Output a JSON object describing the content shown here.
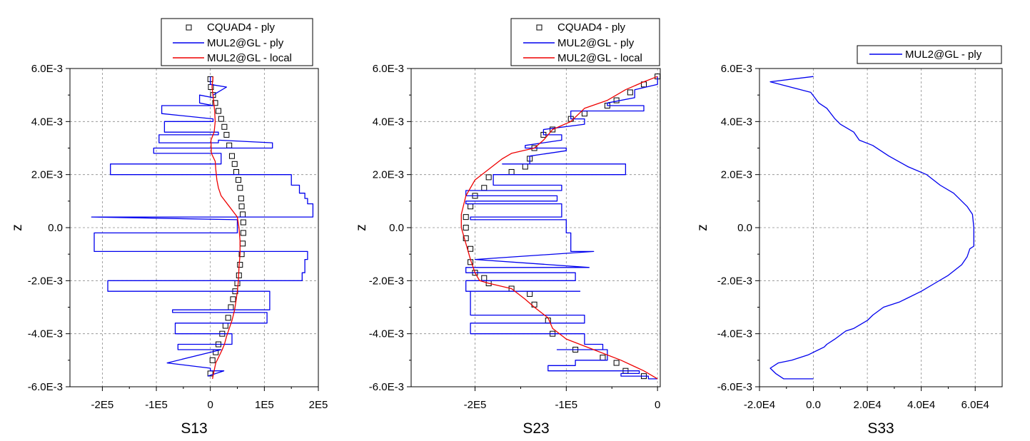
{
  "chart_data": [
    {
      "type": "line",
      "xlabel": "S13",
      "ylabel": "z",
      "xlim": [
        -260000,
        200000
      ],
      "ylim": [
        -0.006,
        0.006
      ],
      "xticks": [
        -200000,
        -100000,
        0,
        100000,
        200000
      ],
      "xtick_labels": [
        "-2E5",
        "-1E5",
        "0",
        "1E5",
        "2E5"
      ],
      "yticks": [
        -0.006,
        -0.004,
        -0.002,
        0,
        0.002,
        0.004,
        0.006
      ],
      "ytick_labels": [
        "-6.0E-3",
        "-4.0E-3",
        "-2.0E-3",
        "0.0",
        "2.0E-3",
        "4.0E-3",
        "6.0E-3"
      ],
      "grid": true,
      "legend_position": "top-right",
      "colors": {
        "cquad": "#000000",
        "ply": "#0000ee",
        "local": "#ee0000"
      },
      "series": [
        {
          "name": "CQUAD4 - ply",
          "marker": "square",
          "x": [
            0,
            1000,
            5000,
            9000,
            15000,
            20000,
            26000,
            30000,
            35000,
            40000,
            45000,
            48000,
            52000,
            55000,
            57000,
            58000,
            60000,
            61000,
            61000,
            60000,
            58000,
            55000,
            53000,
            50000,
            46000,
            42000,
            38000,
            33000,
            28000,
            22000,
            15000,
            10000,
            4000,
            0
          ],
          "y": [
            0.0056,
            0.0053,
            0.005,
            0.0047,
            0.0044,
            0.0041,
            0.0038,
            0.0035,
            0.0031,
            0.0027,
            0.0024,
            0.0021,
            0.0018,
            0.0015,
            0.0011,
            0.0008,
            0.0005,
            0.0002,
            -0.0002,
            -0.0006,
            -0.001,
            -0.0014,
            -0.0018,
            -0.0021,
            -0.0024,
            -0.0027,
            -0.003,
            -0.0034,
            -0.0037,
            -0.004,
            -0.0044,
            -0.0047,
            -0.005,
            -0.0055
          ]
        },
        {
          "name": "MUL2@GL - ply",
          "x": [
            0,
            0,
            30000,
            5000,
            5000,
            -20000,
            -20000,
            5000,
            5000,
            -90000,
            -90000,
            5000,
            5000,
            -85000,
            -85000,
            15000,
            15000,
            -95000,
            -95000,
            15000,
            15000,
            115000,
            115000,
            -105000,
            -105000,
            20000,
            20000,
            -185000,
            -185000,
            150000,
            150000,
            165000,
            165000,
            175000,
            175000,
            180000,
            180000,
            190000,
            190000,
            -220000,
            -220000,
            50000,
            50000,
            -215000,
            -215000,
            180000,
            180000,
            175000,
            175000,
            175000,
            175000,
            170000,
            170000,
            -190000,
            -190000,
            110000,
            110000,
            -70000,
            -70000,
            105000,
            105000,
            -65000,
            -65000,
            40000,
            40000,
            -60000,
            -60000,
            20000,
            -80000,
            -80000,
            0,
            0,
            25000,
            -5000
          ],
          "y": [
            0.0057,
            0.0054,
            0.0053,
            0.005,
            0.0049,
            0.005,
            0.0047,
            0.0046,
            0.0046,
            0.0046,
            0.0043,
            0.0041,
            0.004,
            0.004,
            0.0036,
            0.0036,
            0.0035,
            0.0035,
            0.0032,
            0.0032,
            0.0033,
            0.0032,
            0.003,
            0.003,
            0.0028,
            0.0028,
            0.0024,
            0.0024,
            0.002,
            0.002,
            0.0016,
            0.0016,
            0.0013,
            0.0013,
            0.0011,
            0.0011,
            0.0009,
            0.0009,
            0.0004,
            0.0004,
            0.0004,
            0.0003,
            -0.0002,
            -0.0002,
            -0.0009,
            -0.0009,
            -0.0012,
            -0.0012,
            -0.0015,
            -0.0015,
            -0.0017,
            -0.0017,
            -0.002,
            -0.002,
            -0.0024,
            -0.0024,
            -0.0031,
            -0.0031,
            -0.0032,
            -0.0032,
            -0.0036,
            -0.0036,
            -0.004,
            -0.004,
            -0.0044,
            -0.0044,
            -0.0046,
            -0.0046,
            -0.0051,
            -0.0051,
            -0.0053,
            -0.0054,
            -0.0054,
            -0.0056
          ]
        },
        {
          "name": "MUL2@GL - local",
          "x": [
            5000,
            3000,
            6000,
            8000,
            9000,
            7000,
            1000,
            2000,
            9000,
            10000,
            12000,
            15000,
            20000,
            35000,
            50000,
            53000,
            55000,
            55000,
            53000,
            52000,
            50000,
            48000,
            45000,
            40000,
            35000,
            30000,
            26000,
            22000,
            15000,
            10000,
            8000,
            6000,
            4000
          ],
          "y": [
            0.0057,
            0.0053,
            0.0048,
            0.0044,
            0.004,
            0.0036,
            0.0033,
            0.0028,
            0.0025,
            0.0022,
            0.0018,
            0.0015,
            0.0012,
            0.0008,
            0.0004,
            0.0,
            -0.0005,
            -0.001,
            -0.0015,
            -0.002,
            -0.0024,
            -0.0027,
            -0.0031,
            -0.0035,
            -0.0038,
            -0.0041,
            -0.0044,
            -0.0046,
            -0.0049,
            -0.0051,
            -0.0053,
            -0.0055,
            -0.0057
          ]
        }
      ]
    },
    {
      "type": "line",
      "xlabel": "S23",
      "ylabel": "z",
      "xlim": [
        -270000,
        3000
      ],
      "ylim": [
        -0.006,
        0.006
      ],
      "xticks": [
        -200000,
        -100000,
        0
      ],
      "xtick_labels": [
        "-2E5",
        "-1E5",
        "0"
      ],
      "yticks": [
        -0.006,
        -0.004,
        -0.002,
        0,
        0.002,
        0.004,
        0.006
      ],
      "ytick_labels": [
        "-6.0E-3",
        "-4.0E-3",
        "-2.0E-3",
        "0.0",
        "2.0E-3",
        "4.0E-3",
        "6.0E-3"
      ],
      "grid": true,
      "legend_position": "top-right",
      "colors": {
        "cquad": "#000000",
        "ply": "#0000ee",
        "local": "#ee0000"
      },
      "series": [
        {
          "name": "CQUAD4 - ply",
          "marker": "square",
          "x": [
            0,
            -15000,
            -30000,
            -45000,
            -55000,
            -80000,
            -95000,
            -115000,
            -125000,
            -135000,
            -140000,
            -145000,
            -160000,
            -185000,
            -190000,
            -200000,
            -205000,
            -210000,
            -210000,
            -210000,
            -205000,
            -205000,
            -200000,
            -190000,
            -185000,
            -160000,
            -140000,
            -135000,
            -120000,
            -115000,
            -90000,
            -60000,
            -45000,
            -35000,
            -15000
          ],
          "y": [
            0.0057,
            0.0054,
            0.0051,
            0.0048,
            0.0046,
            0.0043,
            0.0041,
            0.0037,
            0.0035,
            0.003,
            0.0026,
            0.0023,
            0.0021,
            0.0019,
            0.0015,
            0.0012,
            0.0008,
            0.0004,
            0.0,
            -0.0004,
            -0.0008,
            -0.0013,
            -0.0017,
            -0.0019,
            -0.0021,
            -0.0023,
            -0.0025,
            -0.0029,
            -0.0035,
            -0.004,
            -0.0046,
            -0.0049,
            -0.0051,
            -0.0054,
            -0.0056
          ]
        },
        {
          "name": "MUL2@GL - ply",
          "x": [
            0,
            0,
            -25000,
            -25000,
            -55000,
            -55000,
            -15000,
            -15000,
            -95000,
            -95000,
            -80000,
            -80000,
            -125000,
            -125000,
            -105000,
            -105000,
            -145000,
            -145000,
            -100000,
            -100000,
            -140000,
            -140000,
            -170000,
            -170000,
            -35000,
            -35000,
            -180000,
            -180000,
            -105000,
            -105000,
            -210000,
            -210000,
            -110000,
            -110000,
            -210000,
            -210000,
            -105000,
            -105000,
            -205000,
            -205000,
            -100000,
            -100000,
            -95000,
            -95000,
            -70000,
            -70000,
            -200000,
            -200000,
            -75000,
            -75000,
            -210000,
            -210000,
            -90000,
            -90000,
            -210000,
            -210000,
            -85000,
            -85000,
            -205000,
            -205000,
            -80000,
            -80000,
            -205000,
            -205000,
            -80000,
            -80000,
            -60000,
            -60000,
            -110000,
            -110000,
            -55000,
            -55000,
            -90000,
            -90000,
            -120000,
            -120000,
            -20000,
            -20000,
            -40000,
            -40000,
            -10000,
            -10000,
            0
          ],
          "y": [
            0.0057,
            0.0054,
            0.0052,
            0.0049,
            0.0047,
            0.0046,
            0.0046,
            0.0044,
            0.0044,
            0.0041,
            0.0041,
            0.0039,
            0.0037,
            0.0035,
            0.0035,
            0.0033,
            0.0031,
            0.003,
            0.003,
            0.0029,
            0.0027,
            0.0024,
            0.0024,
            0.0024,
            0.0024,
            0.002,
            0.002,
            0.0016,
            0.0016,
            0.0014,
            0.0014,
            0.0012,
            0.0012,
            0.001,
            0.001,
            0.0009,
            0.0009,
            0.0004,
            0.0004,
            0.0003,
            0.0003,
            -0.0002,
            -0.0002,
            -0.0009,
            -0.0009,
            -0.0009,
            -0.0012,
            -0.0012,
            -0.0015,
            -0.0015,
            -0.0015,
            -0.0017,
            -0.0017,
            -0.002,
            -0.002,
            -0.0024,
            -0.0024,
            -0.0024,
            -0.0024,
            -0.0033,
            -0.0033,
            -0.0036,
            -0.0036,
            -0.004,
            -0.004,
            -0.0044,
            -0.0044,
            -0.0046,
            -0.0046,
            -0.0046,
            -0.0046,
            -0.005,
            -0.005,
            -0.0052,
            -0.0052,
            -0.0054,
            -0.0054,
            -0.0055,
            -0.0055,
            -0.0056,
            -0.0056,
            -0.0057,
            -0.0057
          ]
        },
        {
          "name": "MUL2@GL - local",
          "x": [
            0,
            -15000,
            -35000,
            -55000,
            -80000,
            -95000,
            -115000,
            -125000,
            -135000,
            -160000,
            -170000,
            -200000,
            -210000,
            -215000,
            -215000,
            -210000,
            -205000,
            -200000,
            -195000,
            -185000,
            -160000,
            -145000,
            -135000,
            -120000,
            -115000,
            -100000,
            -70000,
            -40000,
            -15000,
            0
          ],
          "y": [
            0.0057,
            0.0055,
            0.0052,
            0.0048,
            0.0045,
            0.004,
            0.0037,
            0.0033,
            0.003,
            0.0028,
            0.0026,
            0.0018,
            0.0012,
            0.0005,
            0.0,
            -0.0006,
            -0.0012,
            -0.0017,
            -0.002,
            -0.0021,
            -0.0023,
            -0.0027,
            -0.003,
            -0.0034,
            -0.0038,
            -0.0042,
            -0.0046,
            -0.005,
            -0.0054,
            -0.0057
          ]
        }
      ]
    },
    {
      "type": "line",
      "xlabel": "S33",
      "ylabel": "z",
      "xlim": [
        -20000,
        70000
      ],
      "ylim": [
        -0.006,
        0.006
      ],
      "xticks": [
        -20000,
        0,
        20000,
        40000,
        60000
      ],
      "xtick_labels": [
        "-2.0E4",
        "0.0",
        "2.0E4",
        "4.0E4",
        "6.0E4"
      ],
      "yticks": [
        -0.006,
        -0.004,
        -0.002,
        0,
        0.002,
        0.004,
        0.006
      ],
      "ytick_labels": [
        "-6.0E-3",
        "-4.0E-3",
        "-2.0E-3",
        "0.0",
        "2.0E-3",
        "4.0E-3",
        "6.0E-3"
      ],
      "grid": true,
      "legend_position": "top-right",
      "colors": {
        "ply": "#0000ee"
      },
      "series": [
        {
          "name": "MUL2@GL - ply",
          "x": [
            0,
            -16000,
            -1000,
            2000,
            5000,
            8000,
            10000,
            15000,
            17000,
            22000,
            28000,
            35000,
            42000,
            47000,
            52000,
            55000,
            57000,
            59000,
            59500,
            59500,
            58000,
            57000,
            55000,
            50000,
            45000,
            40000,
            32000,
            26000,
            22000,
            20000,
            15000,
            12000,
            8000,
            5000,
            4000,
            -2000,
            -8000,
            -13000,
            -16000,
            -14000,
            -11000,
            0
          ],
          "y": [
            0.0057,
            0.0055,
            0.0051,
            0.0047,
            0.0045,
            0.0041,
            0.0039,
            0.0036,
            0.0033,
            0.0031,
            0.0027,
            0.0023,
            0.002,
            0.0016,
            0.0013,
            0.001,
            0.0008,
            0.0005,
            0.0,
            -0.0007,
            -0.0008,
            -0.0011,
            -0.0014,
            -0.0018,
            -0.0021,
            -0.0024,
            -0.0028,
            -0.003,
            -0.0033,
            -0.0035,
            -0.0038,
            -0.0039,
            -0.0042,
            -0.0044,
            -0.0045,
            -0.0048,
            -0.005,
            -0.0051,
            -0.0053,
            -0.0055,
            -0.0057,
            -0.0057
          ]
        }
      ]
    }
  ]
}
